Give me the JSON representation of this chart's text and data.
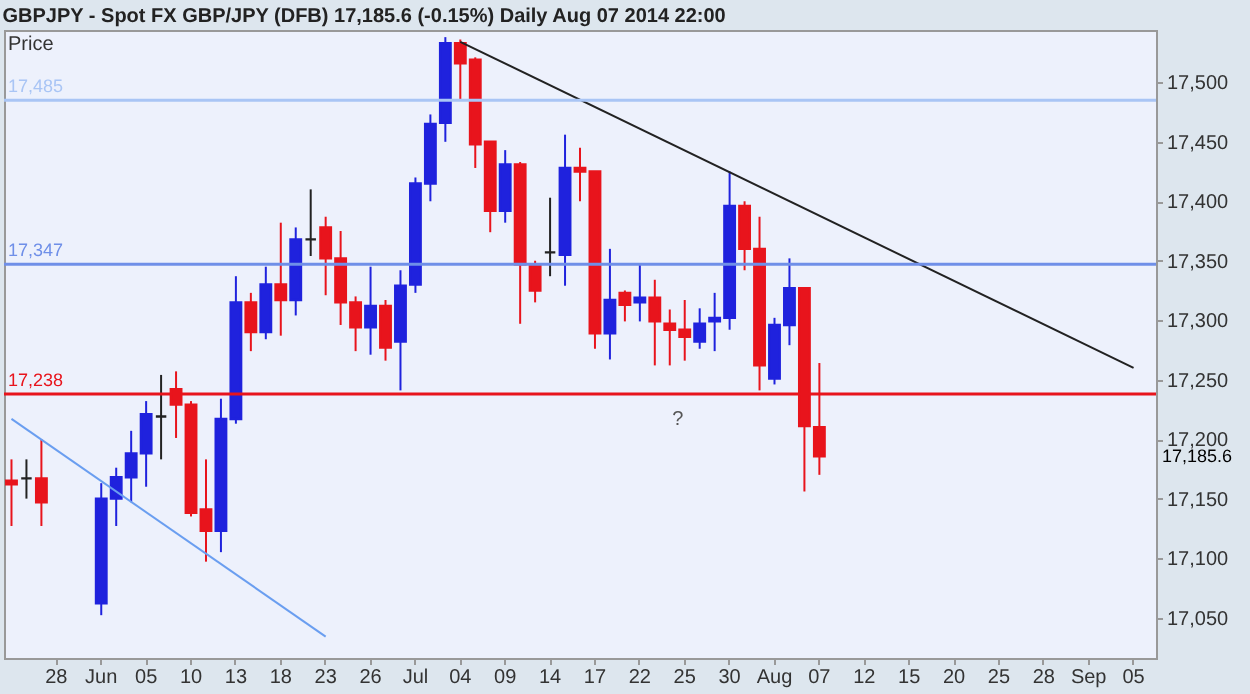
{
  "chart_data": {
    "type": "candlestick",
    "title": "GBPJPY - Spot FX GBP/JPY (DFB)   17,185.6 (-0.15%)   Daily   Aug 07 2014 22:00",
    "ylabel": "Price",
    "categories": [
      null,
      null,
      null,
      "28",
      null,
      null,
      "Jun",
      null,
      null,
      "05",
      null,
      null,
      "10",
      null,
      null,
      "13",
      null,
      null,
      "18",
      null,
      null,
      "23",
      null,
      null,
      "26",
      null,
      null,
      "Jul",
      null,
      null,
      "04",
      null,
      null,
      "09",
      null,
      null,
      "14",
      null,
      null,
      "17",
      null,
      null,
      "22",
      null,
      null,
      "25",
      null,
      null,
      "30",
      null,
      null,
      "Aug",
      null,
      null,
      "07",
      null,
      null,
      "12",
      null,
      null,
      "15",
      null,
      null,
      "20",
      null,
      null,
      "25",
      null,
      null,
      "28",
      null,
      null,
      "Sep",
      null,
      null,
      "05",
      null
    ],
    "ohlc": [
      [
        17165,
        17183,
        17127,
        17162
      ],
      [
        17167,
        17183,
        17150,
        17167
      ],
      [
        17167,
        17200,
        17127,
        17147
      ],
      null,
      null,
      null,
      [
        17062,
        17163,
        17052,
        17150
      ],
      [
        17150,
        17176,
        17127,
        17168
      ],
      [
        17168,
        17207,
        17147,
        17188
      ],
      [
        17188,
        17232,
        17160,
        17221
      ],
      [
        17219,
        17254,
        17183,
        17219
      ],
      [
        17242,
        17257,
        17201,
        17229
      ],
      [
        17229,
        17232,
        17135,
        17138
      ],
      [
        17141,
        17183,
        17097,
        17123
      ],
      [
        17123,
        17234,
        17105,
        17217
      ],
      [
        17217,
        17337,
        17213,
        17315
      ],
      [
        17315,
        17323,
        17274,
        17290
      ],
      [
        17290,
        17345,
        17284,
        17330
      ],
      [
        17330,
        17382,
        17287,
        17317
      ],
      [
        17317,
        17378,
        17304,
        17368
      ],
      [
        17368,
        17410,
        17354,
        17368
      ],
      [
        17378,
        17387,
        17321,
        17352
      ],
      [
        17352,
        17375,
        17296,
        17315
      ],
      [
        17315,
        17320,
        17274,
        17294
      ],
      [
        17294,
        17345,
        17271,
        17312
      ],
      [
        17312,
        17317,
        17266,
        17277
      ],
      [
        17282,
        17342,
        17241,
        17329
      ],
      [
        17330,
        17420,
        17323,
        17415
      ],
      [
        17415,
        17473,
        17400,
        17465
      ],
      [
        17466,
        17538,
        17450,
        17533
      ],
      [
        17533,
        17536,
        17486,
        17516
      ],
      [
        17519,
        17521,
        17428,
        17448
      ],
      [
        17450,
        17450,
        17374,
        17392
      ],
      [
        17392,
        17443,
        17382,
        17431
      ],
      [
        17431,
        17433,
        17297,
        17347
      ],
      [
        17347,
        17350,
        17315,
        17325
      ],
      [
        17357,
        17403,
        17337,
        17357
      ],
      [
        17355,
        17456,
        17329,
        17428
      ],
      [
        17428,
        17445,
        17400,
        17425
      ],
      [
        17425,
        17425,
        17276,
        17289
      ],
      [
        17289,
        17360,
        17267,
        17317
      ],
      [
        17323,
        17325,
        17299,
        17313
      ],
      [
        17315,
        17348,
        17299,
        17319
      ],
      [
        17319,
        17334,
        17262,
        17299
      ],
      [
        17297,
        17309,
        17262,
        17292
      ],
      [
        17292,
        17317,
        17266,
        17286
      ],
      [
        17282,
        17310,
        17276,
        17297
      ],
      [
        17299,
        17323,
        17274,
        17302
      ],
      [
        17302,
        17425,
        17292,
        17396
      ],
      [
        17396,
        17400,
        17342,
        17360
      ],
      [
        17360,
        17387,
        17241,
        17262
      ],
      [
        17251,
        17302,
        17246,
        17296
      ],
      [
        17296,
        17352,
        17279,
        17327
      ],
      [
        17327,
        17327,
        17156,
        17211
      ],
      [
        17210,
        17264,
        17170,
        17185.6
      ],
      null,
      null,
      null,
      null,
      null,
      null,
      null,
      null,
      null,
      null,
      null,
      null,
      null,
      null,
      null,
      null,
      null,
      null,
      null,
      null,
      null,
      null
    ],
    "colors": [
      "#e8141c",
      "#222222",
      "#e8141c",
      null,
      null,
      null,
      "#1f22dd",
      "#1f22dd",
      "#1f22dd",
      "#1f22dd",
      "#222222",
      "#e8141c",
      "#e8141c",
      "#e8141c",
      "#1f22dd",
      "#1f22dd",
      "#e8141c",
      "#1f22dd",
      "#e8141c",
      "#1f22dd",
      "#222222",
      "#e8141c",
      "#e8141c",
      "#e8141c",
      "#1f22dd",
      "#e8141c",
      "#1f22dd",
      "#1f22dd",
      "#1f22dd",
      "#1f22dd",
      "#e8141c",
      "#e8141c",
      "#e8141c",
      "#1f22dd",
      "#e8141c",
      "#e8141c",
      "#222222",
      "#1f22dd",
      "#e8141c",
      "#e8141c",
      "#1f22dd",
      "#e8141c",
      "#1f22dd",
      "#e8141c",
      "#e8141c",
      "#e8141c",
      "#1f22dd",
      "#1f22dd",
      "#1f22dd",
      "#e8141c",
      "#e8141c",
      "#1f22dd",
      "#1f22dd",
      "#e8141c",
      "#e8141c",
      null,
      null,
      null,
      null,
      null,
      null,
      null,
      null,
      null,
      null,
      null,
      null,
      null,
      null,
      null,
      null,
      null,
      null,
      null,
      null,
      null,
      null
    ],
    "series": [
      {
        "type": "line",
        "color": "#222222",
        "values": [
          null,
          null,
          null,
          null,
          null,
          null,
          null,
          null,
          null,
          null,
          null,
          null,
          null,
          null,
          null,
          null,
          null,
          null,
          null,
          null,
          null,
          null,
          null,
          null,
          null,
          null,
          null,
          null,
          null,
          null,
          17534,
          null,
          null,
          null,
          null,
          null,
          null,
          null,
          null,
          null,
          null,
          null,
          null,
          null,
          null,
          null,
          null,
          null,
          null,
          null,
          null,
          null,
          null,
          null,
          null,
          null,
          null,
          null,
          null,
          null,
          null,
          null,
          null,
          null,
          null,
          null,
          null,
          null,
          null,
          null,
          null,
          null,
          null,
          null,
          null,
          17260,
          null
        ]
      },
      {
        "type": "line",
        "color": "#6a9ef0",
        "values": [
          17217,
          null,
          null,
          null,
          null,
          null,
          null,
          null,
          null,
          null,
          null,
          null,
          null,
          null,
          null,
          null,
          null,
          null,
          null,
          null,
          null,
          17034,
          null,
          null,
          null,
          null,
          null,
          null,
          null,
          null,
          null,
          null,
          null,
          null,
          null,
          null,
          null,
          null,
          null,
          null,
          null,
          null,
          null,
          null,
          null,
          null,
          null,
          null,
          null,
          null,
          null,
          null,
          null,
          null,
          null,
          null,
          null,
          null,
          null,
          null,
          null,
          null,
          null,
          null,
          null,
          null,
          null,
          null,
          null,
          null,
          null,
          null,
          null,
          null,
          null,
          null,
          null
        ]
      }
    ],
    "ref_lines": [
      {
        "axis": "y",
        "value": 17485,
        "label": "17,485",
        "color": "#a9c5f5"
      },
      {
        "axis": "y",
        "value": 17347,
        "label": "17,347",
        "color": "#6f8fe8"
      },
      {
        "axis": "y",
        "value": 17238,
        "label": "17,238",
        "color": "#e8141c"
      }
    ],
    "annotations": [
      "?",
      "17,185.6"
    ],
    "ylim": [
      17016,
      17544
    ],
    "yticks": [
      {
        "value": 17050,
        "label": "17,050"
      },
      {
        "value": 17100,
        "label": "17,100"
      },
      {
        "value": 17150,
        "label": "17,150"
      },
      {
        "value": 17200,
        "label": "17,200"
      },
      {
        "value": 17250,
        "label": "17,250"
      },
      {
        "value": 17300,
        "label": "17,300"
      },
      {
        "value": 17350,
        "label": "17,350"
      },
      {
        "value": 17400,
        "label": "17,400"
      },
      {
        "value": 17450,
        "label": "17,450"
      },
      {
        "value": 17500,
        "label": "17,500"
      }
    ]
  }
}
